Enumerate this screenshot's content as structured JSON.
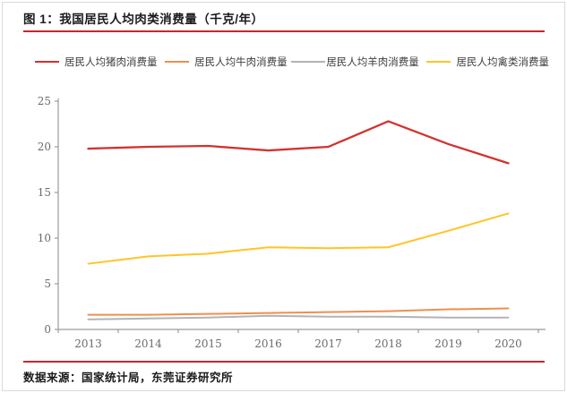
{
  "figure": {
    "title": "图 1：我国居民人均肉类消费量（千克/年）",
    "source_note": "数据来源：国家统计局，东莞证券研究所",
    "accent_color": "#c9262b"
  },
  "chart_data": {
    "type": "line",
    "title": "我国居民人均肉类消费量（千克/年）",
    "categories": [
      "2013",
      "2014",
      "2015",
      "2016",
      "2017",
      "2018",
      "2019",
      "2020"
    ],
    "series": [
      {
        "id": "pork",
        "name": "居民人均猪肉消费量",
        "color": "#d2322e",
        "values": [
          19.8,
          20.0,
          20.1,
          19.6,
          20.0,
          22.8,
          20.3,
          18.2
        ]
      },
      {
        "id": "beef",
        "name": "居民人均牛肉消费量",
        "color": "#ef8f4e",
        "values": [
          1.6,
          1.6,
          1.7,
          1.8,
          1.9,
          2.0,
          2.2,
          2.3
        ]
      },
      {
        "id": "mutton",
        "name": "居民人均羊肉消费量",
        "color": "#b3b3b3",
        "values": [
          1.1,
          1.2,
          1.3,
          1.5,
          1.4,
          1.4,
          1.3,
          1.3
        ]
      },
      {
        "id": "poultry",
        "name": "居民人均禽类消费量",
        "color": "#ffc425",
        "values": [
          7.2,
          8.0,
          8.3,
          9.0,
          8.9,
          9.0,
          10.8,
          12.7
        ]
      }
    ],
    "xlabel": "",
    "ylabel": "",
    "ylim": [
      0,
      25
    ],
    "yticks": [
      0,
      5,
      10,
      15,
      20,
      25
    ],
    "grid": false,
    "legend_position": "top",
    "axis_color": "#9b9b9b",
    "tick_label_color": "#6b6b6b"
  }
}
